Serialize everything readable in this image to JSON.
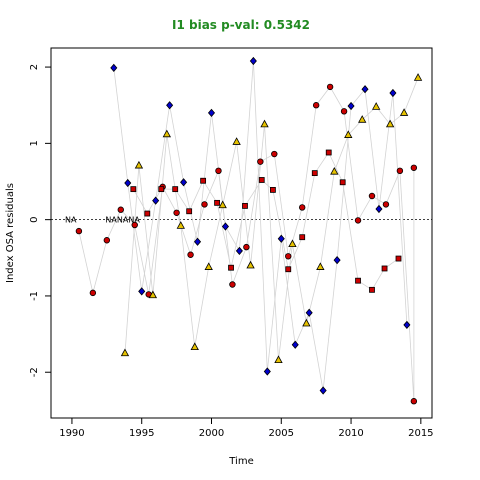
{
  "chart_data": {
    "type": "scatter",
    "title": "I1 bias p-val: 0.5342",
    "title_color": "#228B22",
    "xlabel": "Time",
    "ylabel": "Index OSA residuals",
    "xlim": [
      1988.5,
      2015.8
    ],
    "ylim": [
      -2.6,
      2.25
    ],
    "xticks": [
      1990,
      1995,
      2000,
      2005,
      2010,
      2015
    ],
    "yticks": [
      -2,
      -1,
      0,
      1,
      2
    ],
    "reference_line": 0,
    "line_color": "#d3d3d3",
    "na_labels": [
      {
        "x": 1989.5,
        "text": "NA"
      },
      {
        "x": 1992.4,
        "text": "NANANA"
      }
    ],
    "series": [
      {
        "marker": "circle",
        "fill": "#cc0000",
        "points": [
          [
            1990.5,
            -0.15
          ],
          [
            1991.5,
            -0.96
          ],
          [
            1992.5,
            -0.27
          ],
          [
            1993.5,
            0.13
          ],
          [
            1994.5,
            -0.07
          ],
          [
            1995.5,
            -0.98
          ],
          [
            1996.5,
            0.43
          ],
          [
            1997.5,
            0.09
          ],
          [
            1998.5,
            -0.46
          ],
          [
            1999.5,
            0.2
          ],
          [
            2000.5,
            0.64
          ],
          [
            2001.5,
            -0.85
          ],
          [
            2002.5,
            -0.36
          ],
          [
            2003.5,
            0.76
          ],
          [
            2004.5,
            0.86
          ],
          [
            2005.5,
            -0.48
          ],
          [
            2006.5,
            0.16
          ],
          [
            2007.5,
            1.5
          ],
          [
            2008.5,
            1.74
          ],
          [
            2009.5,
            1.42
          ],
          [
            2010.5,
            -0.01
          ],
          [
            2011.5,
            0.31
          ],
          [
            2012.5,
            0.2
          ],
          [
            2013.5,
            0.64
          ],
          [
            2014.5,
            -2.38
          ],
          [
            2014.5,
            0.68
          ]
        ]
      },
      {
        "marker": "square",
        "fill": "#cc0000",
        "points": [
          [
            1994.4,
            0.4
          ],
          [
            1995.4,
            0.08
          ],
          [
            1996.4,
            0.4
          ],
          [
            1997.4,
            0.4
          ],
          [
            1998.4,
            0.11
          ],
          [
            1999.4,
            0.51
          ],
          [
            2000.4,
            0.22
          ],
          [
            2001.4,
            -0.63
          ],
          [
            2002.4,
            0.18
          ],
          [
            2003.6,
            0.52
          ],
          [
            2004.4,
            0.39
          ],
          [
            2005.5,
            -0.65
          ],
          [
            2006.5,
            -0.23
          ],
          [
            2007.4,
            0.61
          ],
          [
            2008.4,
            0.88
          ],
          [
            2009.4,
            0.49
          ],
          [
            2010.5,
            -0.8
          ],
          [
            2011.5,
            -0.92
          ],
          [
            2012.4,
            -0.64
          ],
          [
            2013.4,
            -0.51
          ]
        ]
      },
      {
        "marker": "triangle",
        "fill": "#e6c200",
        "points": [
          [
            1993.8,
            -1.75
          ],
          [
            1994.8,
            0.71
          ],
          [
            1995.8,
            -0.99
          ],
          [
            1996.8,
            1.12
          ],
          [
            1997.8,
            -0.08
          ],
          [
            1998.8,
            -1.67
          ],
          [
            1999.8,
            -0.62
          ],
          [
            2000.8,
            0.19
          ],
          [
            2001.8,
            1.02
          ],
          [
            2002.8,
            -0.6
          ],
          [
            2003.8,
            1.25
          ],
          [
            2004.8,
            -1.84
          ],
          [
            2005.8,
            -0.32
          ],
          [
            2006.8,
            -1.36
          ],
          [
            2007.8,
            -0.62
          ],
          [
            2008.8,
            0.63
          ],
          [
            2009.8,
            1.11
          ],
          [
            2010.8,
            1.31
          ],
          [
            2011.8,
            1.48
          ],
          [
            2012.8,
            1.25
          ],
          [
            2013.8,
            1.4
          ],
          [
            2014.8,
            1.86
          ]
        ]
      },
      {
        "marker": "diamond",
        "fill": "#0000cc",
        "points": [
          [
            1993.0,
            1.99
          ],
          [
            1994.0,
            0.48
          ],
          [
            1995.0,
            -0.94
          ],
          [
            1996.0,
            0.25
          ],
          [
            1997.0,
            1.5
          ],
          [
            1998.0,
            0.49
          ],
          [
            1999.0,
            -0.29
          ],
          [
            2000.0,
            1.4
          ],
          [
            2001.0,
            -0.09
          ],
          [
            2002.0,
            -0.41
          ],
          [
            2003.0,
            2.08
          ],
          [
            2004.0,
            -1.99
          ],
          [
            2005.0,
            -0.25
          ],
          [
            2006.0,
            -1.64
          ],
          [
            2007.0,
            -1.22
          ],
          [
            2008.0,
            -2.24
          ],
          [
            2009.0,
            -0.53
          ],
          [
            2010.0,
            1.49
          ],
          [
            2011.0,
            1.71
          ],
          [
            2012.0,
            0.14
          ],
          [
            2013.0,
            1.66
          ],
          [
            2014.0,
            -1.38
          ]
        ]
      }
    ]
  }
}
